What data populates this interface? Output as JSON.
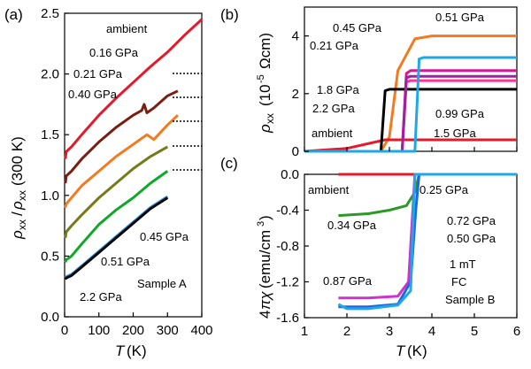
{
  "chart_data": [
    {
      "id": "a",
      "panel_label": "(a)",
      "type": "line",
      "xlabel": "T (K)",
      "ylabel": "ρxx / ρxx (300 K)",
      "xlim": [
        0,
        400
      ],
      "ylim": [
        0,
        2.5
      ],
      "x_ticks": [
        "0",
        "100",
        "200",
        "300",
        "400"
      ],
      "y_ticks": [
        "0.0",
        "0.5",
        "1.0",
        "1.5",
        "2.0",
        "2.5"
      ],
      "note": "Sample A",
      "series": [
        {
          "name": "ambient",
          "color": "#e8182a",
          "offset": 1.25,
          "x": [
            2,
            5,
            20,
            50,
            100,
            150,
            200,
            250,
            300,
            350,
            400
          ],
          "y": [
            1.3,
            1.36,
            1.4,
            1.5,
            1.66,
            1.8,
            1.93,
            2.06,
            2.18,
            2.32,
            2.45
          ]
        },
        {
          "name": "0.16 GPa",
          "color": "#7a1e12",
          "offset": 1.0,
          "x": [
            2,
            5,
            20,
            50,
            100,
            150,
            200,
            225,
            232,
            240,
            260,
            300,
            330
          ],
          "y": [
            1.1,
            1.16,
            1.2,
            1.3,
            1.44,
            1.56,
            1.66,
            1.7,
            1.75,
            1.68,
            1.72,
            1.82,
            1.86
          ]
        },
        {
          "name": "0.40 GPa",
          "color": "#f47a20",
          "offset": 0.75,
          "x": [
            2,
            5,
            20,
            50,
            100,
            150,
            200,
            240,
            260,
            300,
            330
          ],
          "y": [
            0.9,
            0.93,
            0.98,
            1.08,
            1.2,
            1.32,
            1.42,
            1.5,
            1.46,
            1.58,
            1.66
          ]
        },
        {
          "name": "0.45 GPa",
          "color": "#757a1a",
          "offset": 0.5,
          "x": [
            2,
            5,
            20,
            50,
            100,
            150,
            200,
            250,
            300
          ],
          "y": [
            0.65,
            0.7,
            0.75,
            0.84,
            0.98,
            1.1,
            1.22,
            1.32,
            1.4
          ]
        },
        {
          "name": "0.51 GPa",
          "color": "#10a828",
          "offset": 0.25,
          "x": [
            2,
            5,
            20,
            50,
            100,
            150,
            200,
            250,
            300
          ],
          "y": [
            0.45,
            0.47,
            0.5,
            0.6,
            0.76,
            0.88,
            0.98,
            1.1,
            1.2
          ]
        },
        {
          "name": "2.2 GPa",
          "color": "#1ea8e6",
          "offset": 0.0,
          "x": [
            2,
            5,
            20,
            50,
            100,
            150,
            200,
            250,
            300
          ],
          "y": [
            0.32,
            0.33,
            0.35,
            0.42,
            0.54,
            0.66,
            0.78,
            0.9,
            0.99
          ]
        },
        {
          "name": "",
          "color": "#000000",
          "offset": 0.0,
          "x": [
            2,
            5,
            20,
            50,
            100,
            150,
            200,
            250,
            300
          ],
          "y": [
            0.31,
            0.32,
            0.34,
            0.41,
            0.53,
            0.65,
            0.77,
            0.89,
            0.98
          ]
        }
      ],
      "labels": [
        "ambient",
        "0.16 GPa",
        "0.21 GPa",
        "0.40 GPa",
        "0.45 GPa",
        "0.51 GPa",
        "2.2 GPa"
      ]
    },
    {
      "id": "b",
      "panel_label": "(b)",
      "type": "line",
      "ylabel": "ρxx (10^-5 Ωcm)",
      "xlim": [
        1,
        6
      ],
      "ylim": [
        0,
        5
      ],
      "y_ticks": [
        "0",
        "2",
        "4"
      ],
      "series": [
        {
          "name": "0.45 GPa",
          "color": "#f47a20",
          "x": [
            1,
            2.8,
            3.0,
            3.2,
            3.6,
            4.0,
            6
          ],
          "y": [
            0,
            0,
            0.5,
            2.8,
            3.9,
            4.0,
            4.0
          ]
        },
        {
          "name": "ambient",
          "color": "#e8182a",
          "x": [
            1,
            2,
            2.9,
            3.0,
            6
          ],
          "y": [
            0,
            0.1,
            0.4,
            0.4,
            0.4
          ]
        },
        {
          "name": "1.8 GPa",
          "color": "#d81790",
          "x": [
            1,
            3.3,
            3.4,
            3.5,
            6
          ],
          "y": [
            0,
            0,
            2.7,
            2.8,
            2.8
          ]
        },
        {
          "name": "2.2 GPa",
          "color": "#000000",
          "x": [
            1,
            2.8,
            2.9,
            3.0,
            6
          ],
          "y": [
            0,
            0,
            2.1,
            2.15,
            2.15
          ]
        },
        {
          "name": "0.99 GPa",
          "color": "#ff3399",
          "x": [
            1,
            3.3,
            3.4,
            3.5,
            6
          ],
          "y": [
            0,
            0,
            2.4,
            2.45,
            2.45
          ]
        },
        {
          "name": "1.5 GPa",
          "color": "#a020a0",
          "x": [
            1,
            3.3,
            3.4,
            3.5,
            6
          ],
          "y": [
            0,
            0,
            2.55,
            2.6,
            2.6
          ]
        },
        {
          "name": "0.51 GPa",
          "color": "#1ea8e6",
          "x": [
            1,
            3.6,
            3.7,
            3.8,
            6
          ],
          "y": [
            0,
            0,
            3.2,
            3.25,
            3.25
          ]
        }
      ],
      "labels": [
        "0.45 GPa",
        "0.51 GPa",
        "0.21 GPa",
        "1.8 GPa",
        "2.2 GPa",
        "0.99 GPa",
        "ambient",
        "1.5 GPa"
      ]
    },
    {
      "id": "c",
      "panel_label": "(c)",
      "type": "line",
      "xlabel": "T (K)",
      "ylabel": "4πχ (emu/cm3)",
      "xlim": [
        1,
        6
      ],
      "ylim": [
        -1.6,
        0.0
      ],
      "x_ticks": [
        "1",
        "2",
        "3",
        "4",
        "5",
        "6"
      ],
      "y_ticks": [
        "0.0",
        "-0.4",
        "-0.8",
        "-1.2",
        "-1.6"
      ],
      "note": [
        "1 mT",
        "FC",
        "Sample B"
      ],
      "series": [
        {
          "name": "ambient",
          "color": "#e8182a",
          "x": [
            1.8,
            3,
            4,
            6
          ],
          "y": [
            0,
            0,
            0,
            0
          ]
        },
        {
          "name": "0.34 GPa",
          "color": "#2a9a24",
          "x": [
            1.8,
            2.5,
            3.0,
            3.4,
            3.6,
            3.7,
            6
          ],
          "y": [
            -0.46,
            -0.44,
            -0.4,
            -0.35,
            -0.2,
            0,
            0
          ]
        },
        {
          "name": "0.87 GPa",
          "color": "#cc33cc",
          "x": [
            1.8,
            2.5,
            3.2,
            3.45,
            3.55,
            3.6,
            6
          ],
          "y": [
            -1.38,
            -1.38,
            -1.36,
            -1.2,
            -0.4,
            0,
            0
          ]
        },
        {
          "name": "0.50 GPa",
          "color": "#1e66e6",
          "x": [
            1.8,
            2.5,
            3.2,
            3.5,
            3.62,
            3.7,
            6
          ],
          "y": [
            -1.48,
            -1.48,
            -1.45,
            -1.2,
            -0.4,
            0,
            0
          ]
        },
        {
          "name": "0.72 GPa",
          "color": "#1ea8e6",
          "x": [
            1.8,
            2.0,
            2.5,
            3.2,
            3.5,
            3.6,
            6
          ],
          "y": [
            -1.45,
            -1.5,
            -1.5,
            -1.46,
            -1.3,
            0,
            0
          ]
        }
      ],
      "labels": [
        "ambient",
        "0.25 GPa",
        "0.34 GPa",
        "0.72 GPa",
        "0.50 GPa",
        "0.87 GPa"
      ]
    }
  ]
}
